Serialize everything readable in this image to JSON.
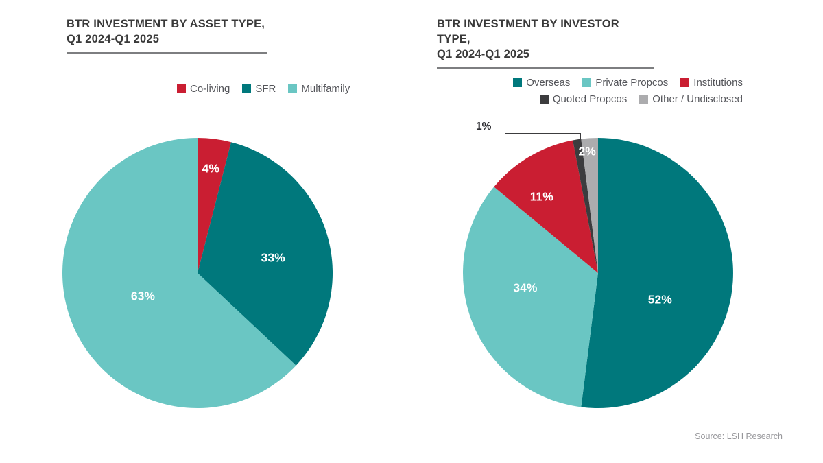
{
  "page": {
    "background": "#FFFFFF",
    "source_note": "Source: LSH Research"
  },
  "colors": {
    "dark_teal": "#00787C",
    "light_teal": "#6AC6C3",
    "red": "#CA1E32",
    "charcoal": "#3C3C3E",
    "gray": "#ACACAE",
    "title_text": "#3A3A3A",
    "legend_text": "#54555A",
    "title_rule": "#7D7E80",
    "callout_text": "#2B2B30",
    "source_text": "#97979B"
  },
  "chart_data": [
    {
      "type": "pie",
      "title_line1": "BTR INVESTMENT BY ASSET TYPE,",
      "title_line2": "Q1 2024-Q1 2025",
      "legend_position": "above-chart-single-row",
      "categories": [
        "Co-living",
        "SFR",
        "Multifamily"
      ],
      "values": [
        4,
        33,
        63
      ],
      "slices": [
        {
          "name": "Co-living",
          "value": 4,
          "label_text": "4%",
          "color": "#CA1E32",
          "label_color": "#FFFFFF",
          "label_placement": "inside",
          "label_radius_frac": 0.78,
          "label_angle_nudge": 0,
          "legend_row": 0
        },
        {
          "name": "SFR",
          "value": 33,
          "label_text": "33%",
          "color": "#00787C",
          "label_color": "#FFFFFF",
          "label_placement": "inside",
          "label_radius_frac": 0.57,
          "label_angle_nudge": 5,
          "legend_row": 0
        },
        {
          "name": "Multifamily",
          "value": 63,
          "label_text": "63%",
          "color": "#6AC6C3",
          "label_color": "#FFFFFF",
          "label_placement": "inside",
          "label_radius_frac": 0.44,
          "label_angle_nudge": 0,
          "legend_row": 0
        }
      ]
    },
    {
      "type": "pie",
      "title_line1": "BTR INVESTMENT BY INVESTOR TYPE,",
      "title_line2": "Q1 2024-Q1 2025",
      "legend_position": "above-chart-two-rows-right-aligned",
      "categories": [
        "Overseas",
        "Private Propcos",
        "Institutions",
        "Quoted Propcos",
        "Other / Undisclosed"
      ],
      "values": [
        52,
        34,
        11,
        1,
        2
      ],
      "slices": [
        {
          "name": "Overseas",
          "value": 52,
          "label_text": "52%",
          "color": "#00787C",
          "label_color": "#FFFFFF",
          "label_placement": "inside",
          "label_radius_frac": 0.5,
          "label_angle_nudge": 20,
          "legend_row": 0
        },
        {
          "name": "Private Propcos",
          "value": 34,
          "label_text": "34%",
          "color": "#6AC6C3",
          "label_color": "#FFFFFF",
          "label_placement": "inside",
          "label_radius_frac": 0.55,
          "label_angle_nudge": 10,
          "legend_row": 0
        },
        {
          "name": "Institutions",
          "value": 11,
          "label_text": "11%",
          "color": "#CA1E32",
          "label_color": "#FFFFFF",
          "label_placement": "inside",
          "label_radius_frac": 0.7,
          "label_angle_nudge": -6,
          "legend_row": 0
        },
        {
          "name": "Quoted Propcos",
          "value": 1,
          "label_text": "1%",
          "color": "#3C3C3E",
          "label_color": "#2B2B30",
          "label_placement": "outside-callout",
          "label_radius_frac": 0,
          "label_angle_nudge": 0,
          "legend_row": 1
        },
        {
          "name": "Other / Undisclosed",
          "value": 2,
          "label_text": "2%",
          "color": "#ACACAE",
          "label_color": "#FFFFFF",
          "label_placement": "inside",
          "label_radius_frac": 0.9,
          "label_angle_nudge": -1.5,
          "legend_row": 1
        }
      ]
    }
  ]
}
